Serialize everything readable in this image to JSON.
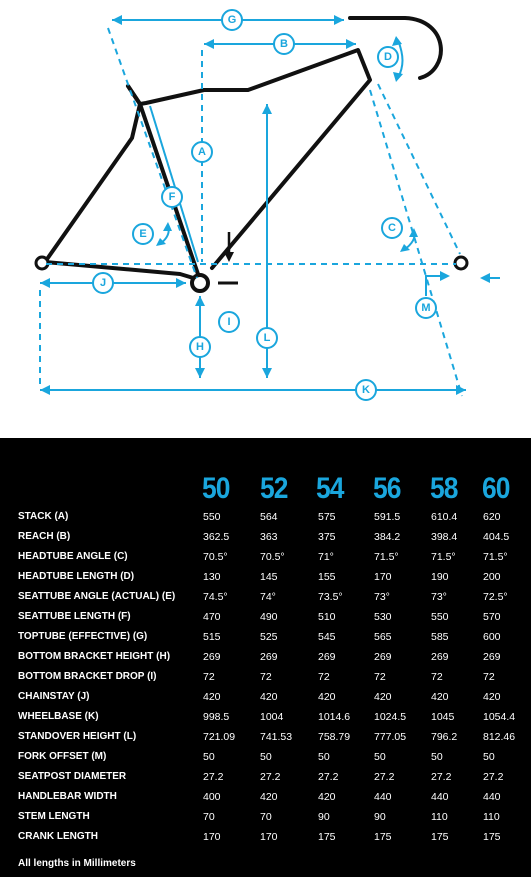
{
  "diagram": {
    "labels": {
      "G": "G",
      "B": "B",
      "D": "D",
      "A": "A",
      "F": "F",
      "E": "E",
      "C": "C",
      "J": "J",
      "M": "M",
      "I": "I",
      "H": "H",
      "L": "L",
      "K": "K"
    }
  },
  "table": {
    "sizes": [
      "50",
      "52",
      "54",
      "56",
      "58",
      "60"
    ],
    "rows": [
      {
        "label": "STACK (A)",
        "values": [
          "550",
          "564",
          "575",
          "591.5",
          "610.4",
          "620"
        ]
      },
      {
        "label": "REACH (B)",
        "values": [
          "362.5",
          "363",
          "375",
          "384.2",
          "398.4",
          "404.5"
        ]
      },
      {
        "label": "HEADTUBE ANGLE (C)",
        "values": [
          "70.5°",
          "70.5°",
          "71°",
          "71.5°",
          "71.5°",
          "71.5°"
        ]
      },
      {
        "label": "HEADTUBE LENGTH (D)",
        "values": [
          "130",
          "145",
          "155",
          "170",
          "190",
          "200"
        ]
      },
      {
        "label": "SEATTUBE ANGLE (ACTUAL) (E)",
        "values": [
          "74.5°",
          "74°",
          "73.5°",
          "73°",
          "73°",
          "72.5°"
        ]
      },
      {
        "label": "SEATTUBE LENGTH (F)",
        "values": [
          "470",
          "490",
          "510",
          "530",
          "550",
          "570"
        ]
      },
      {
        "label": "TOPTUBE (EFFECTIVE) (G)",
        "values": [
          "515",
          "525",
          "545",
          "565",
          "585",
          "600"
        ]
      },
      {
        "label": "BOTTOM BRACKET HEIGHT (H)",
        "values": [
          "269",
          "269",
          "269",
          "269",
          "269",
          "269"
        ]
      },
      {
        "label": "BOTTOM BRACKET DROP (I)",
        "values": [
          "72",
          "72",
          "72",
          "72",
          "72",
          "72"
        ]
      },
      {
        "label": "CHAINSTAY (J)",
        "values": [
          "420",
          "420",
          "420",
          "420",
          "420",
          "420"
        ]
      },
      {
        "label": "WHEELBASE (K)",
        "values": [
          "998.5",
          "1004",
          "1014.6",
          "1024.5",
          "1045",
          "1054.4"
        ]
      },
      {
        "label": "STANDOVER HEIGHT (L)",
        "values": [
          "721.09",
          "741.53",
          "758.79",
          "777.05",
          "796.2",
          "812.46"
        ]
      },
      {
        "label": "FORK OFFSET (M)",
        "values": [
          "50",
          "50",
          "50",
          "50",
          "50",
          "50"
        ]
      },
      {
        "label": "SEATPOST DIAMETER",
        "values": [
          "27.2",
          "27.2",
          "27.2",
          "27.2",
          "27.2",
          "27.2"
        ]
      },
      {
        "label": "HANDLEBAR WIDTH",
        "values": [
          "400",
          "420",
          "420",
          "440",
          "440",
          "440"
        ]
      },
      {
        "label": "STEM LENGTH",
        "values": [
          "70",
          "70",
          "90",
          "90",
          "110",
          "110"
        ]
      },
      {
        "label": "CRANK LENGTH",
        "values": [
          "170",
          "170",
          "175",
          "175",
          "175",
          "175"
        ]
      }
    ],
    "footnote": "All lengths in Millimeters"
  },
  "colors": {
    "accent": "#1aa6dd",
    "frame": "#111111",
    "panel": "#000000"
  }
}
